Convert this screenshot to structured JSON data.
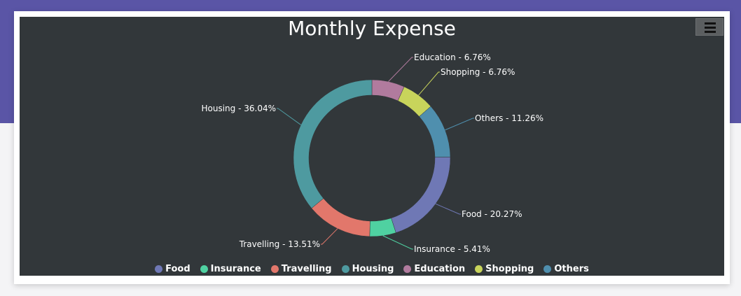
{
  "chart_data": {
    "type": "pie",
    "variant": "doughnut",
    "title": "Monthly Expense",
    "labels": [
      "Food",
      "Insurance",
      "Travelling",
      "Housing",
      "Education",
      "Shopping",
      "Others"
    ],
    "values": [
      20.27,
      5.41,
      13.51,
      36.04,
      6.76,
      6.76,
      11.26
    ],
    "slice_labels": [
      "Food - 20.27%",
      "Insurance - 5.41%",
      "Travelling - 13.51%",
      "Housing - 36.04%",
      "Education - 6.76%",
      "Shopping - 6.76%",
      "Others - 11.26%"
    ],
    "colors": [
      "#6f78b5",
      "#4fd1a1",
      "#e2776b",
      "#4e9aa0",
      "#b17b9e",
      "#c8d45b",
      "#4f8fae"
    ],
    "legend_position": "bottom-center"
  },
  "toolbar": {
    "menu_icon": "hamburger-menu-icon"
  },
  "theme": {
    "background": "#32373a",
    "text": "#ffffff",
    "page_accent": "#5a55a6"
  }
}
